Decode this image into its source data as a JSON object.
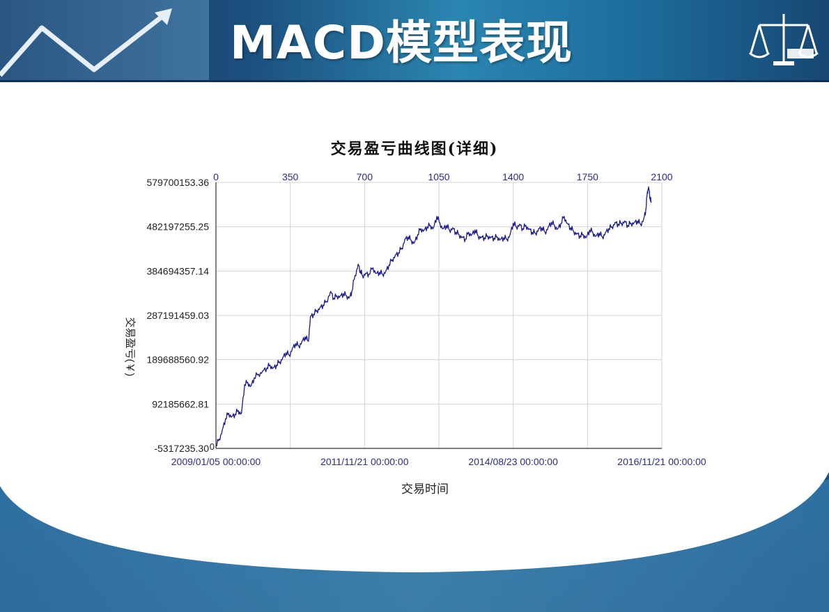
{
  "slide": {
    "title": "MACD模型表现"
  },
  "colors": {
    "header": "#1c5b8c",
    "line": "#1a1a8c",
    "tick_label": "#2b2b8a"
  },
  "icons": {
    "left": "rising-arrow-icon",
    "right": "scales-of-justice-icon"
  },
  "chart_data": {
    "type": "line",
    "title": "交易盈亏曲线图(详细)",
    "xlabel": "交易时间",
    "ylabel": "交易盈亏(￥)",
    "grid": true,
    "legend": "none",
    "y_ticks": [
      "-5317235.30",
      "92185662.81",
      "189688560.92",
      "287191459.03",
      "384694357.14",
      "482197255.25",
      "579700153.36"
    ],
    "y_tick_values": [
      -5317235.3,
      92185662.81,
      189688560.92,
      287191459.03,
      384694357.14,
      482197255.25,
      579700153.36
    ],
    "ylim": [
      -5317235.3,
      579700153.36
    ],
    "x_top_ticks": [
      "0",
      "350",
      "700",
      "1050",
      "1400",
      "1750",
      "2100"
    ],
    "x_top_tick_values": [
      0,
      350,
      700,
      1050,
      1400,
      1750,
      2100
    ],
    "x_bottom_ticks": [
      {
        "value": 0,
        "label": "2009/01/05 00:00:00"
      },
      {
        "value": 700,
        "label": "2011/11/21 00:00:00"
      },
      {
        "value": 1400,
        "label": "2014/08/23 00:00:00"
      },
      {
        "value": 2100,
        "label": "2016/11/21 00:00:00"
      }
    ],
    "xlim": [
      0,
      2100
    ],
    "series": [
      {
        "values": [
          [
            0,
            0
          ],
          [
            15,
            15000000
          ],
          [
            30,
            35000000
          ],
          [
            45,
            60000000
          ],
          [
            60,
            72000000
          ],
          [
            75,
            65000000
          ],
          [
            90,
            70000000
          ],
          [
            105,
            78000000
          ],
          [
            120,
            72000000
          ],
          [
            135,
            135000000
          ],
          [
            150,
            140000000
          ],
          [
            165,
            132000000
          ],
          [
            180,
            150000000
          ],
          [
            200,
            158000000
          ],
          [
            220,
            165000000
          ],
          [
            240,
            172000000
          ],
          [
            255,
            178000000
          ],
          [
            270,
            172000000
          ],
          [
            285,
            178000000
          ],
          [
            300,
            185000000
          ],
          [
            315,
            195000000
          ],
          [
            330,
            205000000
          ],
          [
            345,
            200000000
          ],
          [
            360,
            215000000
          ],
          [
            375,
            225000000
          ],
          [
            390,
            220000000
          ],
          [
            405,
            230000000
          ],
          [
            420,
            240000000
          ],
          [
            435,
            230000000
          ],
          [
            445,
            285000000
          ],
          [
            460,
            290000000
          ],
          [
            475,
            298000000
          ],
          [
            490,
            305000000
          ],
          [
            505,
            310000000
          ],
          [
            520,
            318000000
          ],
          [
            540,
            340000000
          ],
          [
            555,
            325000000
          ],
          [
            570,
            330000000
          ],
          [
            585,
            330000000
          ],
          [
            600,
            335000000
          ],
          [
            615,
            330000000
          ],
          [
            630,
            328000000
          ],
          [
            640,
            340000000
          ],
          [
            655,
            375000000
          ],
          [
            670,
            400000000
          ],
          [
            680,
            385000000
          ],
          [
            690,
            375000000
          ],
          [
            705,
            380000000
          ],
          [
            720,
            378000000
          ],
          [
            740,
            392000000
          ],
          [
            755,
            380000000
          ],
          [
            770,
            382000000
          ],
          [
            785,
            378000000
          ],
          [
            800,
            385000000
          ],
          [
            815,
            398000000
          ],
          [
            830,
            410000000
          ],
          [
            845,
            420000000
          ],
          [
            860,
            425000000
          ],
          [
            875,
            435000000
          ],
          [
            890,
            455000000
          ],
          [
            905,
            460000000
          ],
          [
            920,
            452000000
          ],
          [
            935,
            448000000
          ],
          [
            950,
            465000000
          ],
          [
            965,
            478000000
          ],
          [
            980,
            475000000
          ],
          [
            995,
            482000000
          ],
          [
            1010,
            485000000
          ],
          [
            1025,
            480000000
          ],
          [
            1040,
            505000000
          ],
          [
            1055,
            490000000
          ],
          [
            1070,
            478000000
          ],
          [
            1085,
            485000000
          ],
          [
            1100,
            475000000
          ],
          [
            1115,
            480000000
          ],
          [
            1130,
            470000000
          ],
          [
            1145,
            465000000
          ],
          [
            1160,
            460000000
          ],
          [
            1175,
            455000000
          ],
          [
            1190,
            470000000
          ],
          [
            1205,
            465000000
          ],
          [
            1220,
            475000000
          ],
          [
            1235,
            462000000
          ],
          [
            1250,
            460000000
          ],
          [
            1265,
            458000000
          ],
          [
            1280,
            462000000
          ],
          [
            1295,
            460000000
          ],
          [
            1310,
            457000000
          ],
          [
            1325,
            460000000
          ],
          [
            1340,
            455000000
          ],
          [
            1355,
            458000000
          ],
          [
            1370,
            455000000
          ],
          [
            1385,
            465000000
          ],
          [
            1400,
            490000000
          ],
          [
            1415,
            482000000
          ],
          [
            1430,
            488000000
          ],
          [
            1445,
            478000000
          ],
          [
            1460,
            485000000
          ],
          [
            1475,
            478000000
          ],
          [
            1490,
            470000000
          ],
          [
            1505,
            468000000
          ],
          [
            1520,
            478000000
          ],
          [
            1535,
            480000000
          ],
          [
            1550,
            470000000
          ],
          [
            1565,
            482000000
          ],
          [
            1580,
            492000000
          ],
          [
            1595,
            485000000
          ],
          [
            1610,
            478000000
          ],
          [
            1625,
            490000000
          ],
          [
            1640,
            505000000
          ],
          [
            1655,
            490000000
          ],
          [
            1670,
            480000000
          ],
          [
            1685,
            472000000
          ],
          [
            1700,
            468000000
          ],
          [
            1715,
            462000000
          ],
          [
            1730,
            465000000
          ],
          [
            1745,
            460000000
          ],
          [
            1760,
            475000000
          ],
          [
            1775,
            470000000
          ],
          [
            1790,
            462000000
          ],
          [
            1805,
            468000000
          ],
          [
            1820,
            460000000
          ],
          [
            1835,
            470000000
          ],
          [
            1850,
            478000000
          ],
          [
            1865,
            482000000
          ],
          [
            1880,
            492000000
          ],
          [
            1895,
            488000000
          ],
          [
            1910,
            490000000
          ],
          [
            1925,
            495000000
          ],
          [
            1940,
            485000000
          ],
          [
            1955,
            490000000
          ],
          [
            1970,
            492000000
          ],
          [
            1985,
            495000000
          ],
          [
            2000,
            488000000
          ],
          [
            2015,
            500000000
          ],
          [
            2025,
            520000000
          ],
          [
            2032,
            560000000
          ],
          [
            2038,
            570000000
          ],
          [
            2045,
            545000000
          ],
          [
            2050,
            535000000
          ]
        ]
      }
    ]
  }
}
